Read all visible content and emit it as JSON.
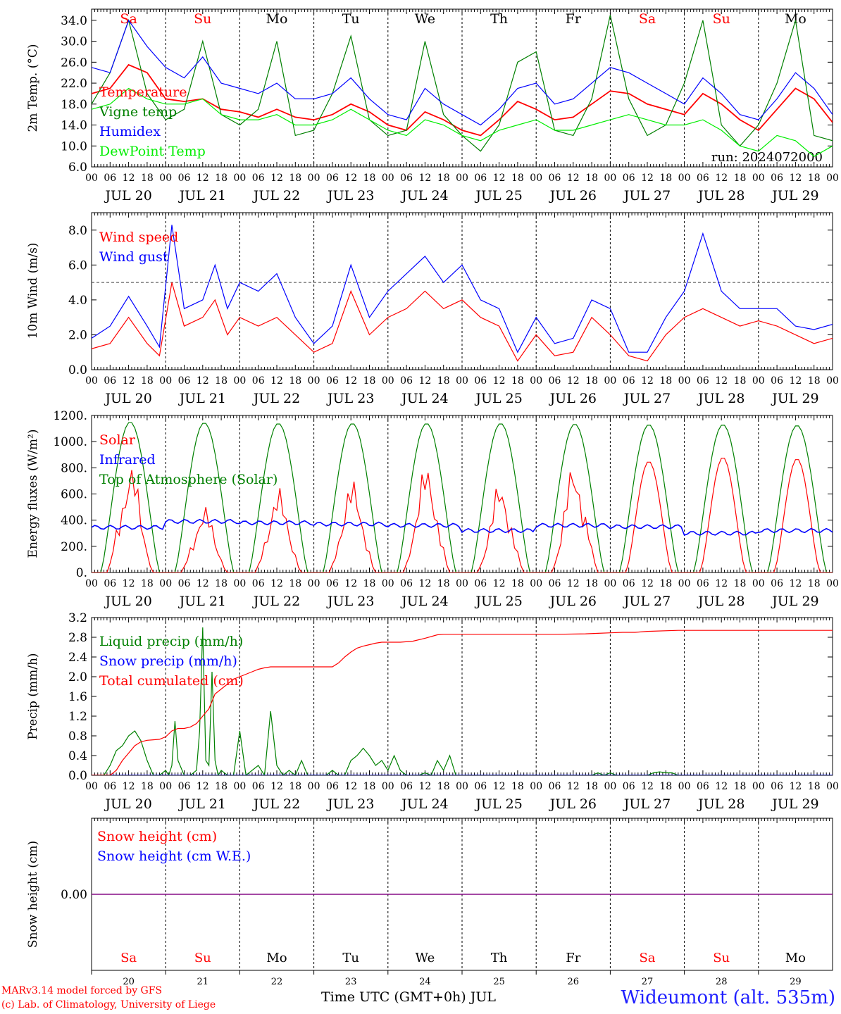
{
  "run_label": "run: 2024072000",
  "days": [
    "JUL 20",
    "JUL 21",
    "JUL 22",
    "JUL 23",
    "JUL 24",
    "JUL 25",
    "JUL 26",
    "JUL 27",
    "JUL 28",
    "JUL 29"
  ],
  "day_numbers": [
    "20",
    "21",
    "22",
    "23",
    "24",
    "25",
    "26",
    "27",
    "28",
    "29"
  ],
  "weekdays": [
    "Sa",
    "Su",
    "Mo",
    "Tu",
    "We",
    "Th",
    "Fr",
    "Sa",
    "Su",
    "Mo"
  ],
  "weekend_flags": [
    true,
    true,
    false,
    false,
    false,
    false,
    false,
    true,
    true,
    false
  ],
  "hour_ticks": [
    "00",
    "06",
    "12",
    "18"
  ],
  "final_hour_tick": "00",
  "colors": {
    "red": "#ff0000",
    "green": "#008000",
    "blue": "#0000ff",
    "lightgreen": "#00ee00",
    "purple": "#800080",
    "grid": "#000000"
  },
  "footer": {
    "model": "MARv3.14 model forced by GFS",
    "copyright": "(c) Lab. of Climatology, University of Liege",
    "xaxis_label": "Time UTC (GMT+0h) JUL",
    "station": "Wideumont (alt. 535m)"
  },
  "chart_data": [
    {
      "type": "line",
      "ylabel": "2m Temp. (°C)",
      "ylim": [
        6,
        36
      ],
      "yticks": [
        "6.0",
        "10.0",
        "14.0",
        "18.0",
        "22.0",
        "26.0",
        "30.0",
        "34.0"
      ],
      "ytick_values": [
        6,
        10,
        14,
        18,
        22,
        26,
        30,
        34
      ],
      "x_unit": "hours since JUL 20 00 UTC",
      "series": [
        {
          "name": "Temperature",
          "color": "#ff0000",
          "x": [
            0,
            6,
            12,
            18,
            24,
            30,
            36,
            42,
            48,
            54,
            60,
            66,
            72,
            78,
            84,
            90,
            96,
            102,
            108,
            114,
            120,
            126,
            132,
            138,
            144,
            150,
            156,
            162,
            168,
            174,
            180,
            186,
            192,
            198,
            204,
            210,
            216,
            222,
            228,
            234,
            240
          ],
          "values": [
            20,
            21,
            25.5,
            24,
            19,
            18.5,
            19,
            17,
            16.5,
            15.5,
            17,
            15.5,
            15,
            16,
            18,
            16.5,
            14,
            13,
            16.5,
            15,
            13,
            12,
            15,
            18.5,
            17,
            15,
            15.5,
            18,
            20.5,
            20,
            18,
            17,
            16,
            20,
            18,
            15,
            13,
            17,
            21,
            19,
            14.5
          ]
        },
        {
          "name": "Vigne temp",
          "color": "#008000",
          "x": [
            0,
            6,
            12,
            18,
            24,
            30,
            36,
            42,
            48,
            54,
            60,
            66,
            72,
            78,
            84,
            90,
            96,
            102,
            108,
            114,
            120,
            126,
            132,
            138,
            144,
            150,
            156,
            162,
            168,
            174,
            180,
            186,
            192,
            198,
            204,
            210,
            216,
            222,
            228,
            234,
            240
          ],
          "values": [
            18,
            24,
            34,
            20,
            15,
            17,
            30,
            16,
            14,
            17,
            30,
            12,
            13,
            20,
            31,
            15,
            12,
            13,
            30,
            16,
            12,
            9,
            14,
            26,
            28,
            13,
            12,
            19,
            35,
            19,
            12,
            14,
            22,
            34,
            14,
            10,
            14,
            22,
            34,
            12,
            11
          ]
        },
        {
          "name": "Humidex",
          "color": "#0000ff",
          "x": [
            0,
            6,
            12,
            18,
            24,
            30,
            36,
            42,
            48,
            54,
            60,
            66,
            72,
            78,
            84,
            90,
            96,
            102,
            108,
            114,
            120,
            126,
            132,
            138,
            144,
            150,
            156,
            162,
            168,
            174,
            180,
            186,
            192,
            198,
            204,
            210,
            216,
            222,
            228,
            234,
            240
          ],
          "values": [
            25,
            24,
            34,
            29,
            25,
            23,
            27,
            22,
            21,
            20,
            22,
            19,
            19,
            20,
            23,
            19,
            16,
            15,
            21,
            18,
            16,
            14,
            17,
            21,
            22,
            18,
            19,
            22,
            25,
            24,
            22,
            20,
            18,
            23,
            20,
            16,
            15,
            19,
            24,
            21,
            16
          ]
        },
        {
          "name": "DewPoint Temp",
          "color": "#00ee00",
          "x": [
            0,
            6,
            12,
            18,
            24,
            30,
            36,
            42,
            48,
            54,
            60,
            66,
            72,
            78,
            84,
            90,
            96,
            102,
            108,
            114,
            120,
            126,
            132,
            138,
            144,
            150,
            156,
            162,
            168,
            174,
            180,
            186,
            192,
            198,
            204,
            210,
            216,
            222,
            228,
            234,
            240
          ],
          "values": [
            17,
            18,
            21,
            19,
            18,
            18,
            19,
            16,
            15,
            15,
            16,
            14,
            14,
            15,
            17,
            15,
            13,
            12,
            15,
            14,
            12,
            11,
            13,
            14,
            15,
            13,
            13,
            14,
            15,
            16,
            15,
            14,
            14,
            15,
            13,
            10,
            9,
            12,
            11,
            8,
            10
          ]
        }
      ]
    },
    {
      "type": "line",
      "ylabel": "10m Wind (m/s)",
      "ylim": [
        0,
        9
      ],
      "yticks": [
        "0.0",
        "2.0",
        "4.0",
        "6.0",
        "8.0"
      ],
      "ytick_values": [
        0,
        2,
        4,
        6,
        8
      ],
      "reference_line": 5,
      "x_unit": "hours since JUL 20 00 UTC",
      "series": [
        {
          "name": "Wind speed",
          "color": "#ff0000",
          "x": [
            0,
            6,
            12,
            18,
            22,
            26,
            30,
            36,
            40,
            44,
            48,
            54,
            60,
            66,
            72,
            78,
            84,
            90,
            96,
            102,
            108,
            114,
            120,
            126,
            132,
            138,
            144,
            150,
            156,
            162,
            168,
            174,
            180,
            186,
            192,
            198,
            204,
            210,
            216,
            222,
            228,
            234,
            240
          ],
          "values": [
            1.2,
            1.5,
            3,
            1.5,
            0.8,
            5,
            2.5,
            3,
            4,
            2,
            3,
            2.5,
            3,
            2,
            1,
            1.5,
            4.5,
            2,
            3,
            3.5,
            4.5,
            3.5,
            4,
            3,
            2.5,
            0.5,
            2,
            0.8,
            1,
            3,
            2,
            0.8,
            0.5,
            2,
            3,
            3.5,
            3,
            2.5,
            2.8,
            2.5,
            2,
            1.5,
            1.8
          ]
        },
        {
          "name": "Wind gust",
          "color": "#0000ff",
          "x": [
            0,
            6,
            12,
            18,
            22,
            26,
            30,
            36,
            40,
            44,
            48,
            54,
            60,
            66,
            72,
            78,
            84,
            90,
            96,
            102,
            108,
            114,
            120,
            126,
            132,
            138,
            144,
            150,
            156,
            162,
            168,
            174,
            180,
            186,
            192,
            198,
            204,
            210,
            216,
            222,
            228,
            234,
            240
          ],
          "values": [
            1.8,
            2.5,
            4.2,
            2.5,
            1.3,
            8.3,
            3.5,
            4,
            6,
            3.5,
            5,
            4.5,
            5.5,
            3,
            1.5,
            2.5,
            6,
            3,
            4.5,
            5.5,
            6.5,
            5,
            6,
            4,
            3.5,
            1,
            3,
            1.5,
            1.8,
            4,
            3.5,
            1,
            1,
            3,
            4.5,
            7.8,
            4.5,
            3.5,
            3.5,
            3.5,
            2.5,
            2.3,
            2.6
          ]
        }
      ]
    },
    {
      "type": "line",
      "ylabel": "Energy fluxes (W/m²)",
      "ylim": [
        0,
        1200
      ],
      "yticks": [
        "0.",
        "200.",
        "400.",
        "600.",
        "800.",
        "1000.",
        "1200."
      ],
      "ytick_values": [
        0,
        200,
        400,
        600,
        800,
        1000,
        1200
      ],
      "x_unit": "hours since JUL 20 00 UTC",
      "day_peaks": {
        "toa": [
          1150,
          1145,
          1140,
          1140,
          1140,
          1140,
          1135,
          1130,
          1130,
          1125
        ],
        "solar": [
          840,
          510,
          650,
          720,
          840,
          700,
          850,
          850,
          880,
          870
        ]
      },
      "infrared_level": [
        345,
        390,
        380,
        370,
        360,
        320,
        360,
        350,
        300,
        320
      ],
      "series": [
        {
          "name": "Solar",
          "color": "#ff0000"
        },
        {
          "name": "Infrared",
          "color": "#0000ff"
        },
        {
          "name": "Top of Atmosphere (Solar)",
          "color": "#008000"
        }
      ]
    },
    {
      "type": "line",
      "ylabel": "Precip (mm/h)",
      "ylim": [
        0,
        3.2
      ],
      "yticks": [
        "0.0",
        "0.4",
        "0.8",
        "1.2",
        "1.6",
        "2.0",
        "2.4",
        "2.8",
        "3.2"
      ],
      "ytick_values": [
        0,
        0.4,
        0.8,
        1.2,
        1.6,
        2.0,
        2.4,
        2.8,
        3.2
      ],
      "x_unit": "hours since JUL 20 00 UTC",
      "series": [
        {
          "name": "Liquid precip (mm/h)",
          "color": "#008000",
          "x": [
            0,
            4,
            6,
            8,
            10,
            12,
            14,
            16,
            18,
            20,
            22,
            24,
            25,
            26,
            27,
            28,
            30,
            32,
            34,
            35,
            36,
            37,
            38,
            39,
            40,
            41,
            42,
            44,
            46,
            48,
            50,
            52,
            54,
            56,
            58,
            60,
            62,
            64,
            66,
            68,
            70,
            72,
            74,
            76,
            78,
            80,
            82,
            84,
            86,
            88,
            90,
            92,
            94,
            96,
            98,
            100,
            102,
            104,
            106,
            108,
            110,
            112,
            114,
            116,
            118,
            120,
            160,
            162,
            164,
            166,
            168,
            170,
            172,
            174,
            176,
            178,
            180,
            182,
            184,
            186,
            188,
            190,
            192,
            194,
            240
          ],
          "values": [
            0,
            0,
            0.2,
            0.5,
            0.6,
            0.8,
            0.9,
            0.7,
            0.3,
            0,
            0,
            0.1,
            0,
            0.2,
            1.1,
            0.3,
            0,
            0,
            0.1,
            0.9,
            3.0,
            0.3,
            0.2,
            2.1,
            0.3,
            0,
            0.1,
            0,
            0,
            0.9,
            0,
            0.1,
            0.2,
            0,
            1.3,
            0.2,
            0,
            0.1,
            0,
            0.3,
            0,
            0,
            0,
            0,
            0.1,
            0,
            0,
            0.3,
            0.4,
            0.55,
            0.4,
            0.2,
            0.3,
            0.1,
            0.4,
            0.1,
            0,
            0,
            0,
            0.05,
            0,
            0.3,
            0.1,
            0.4,
            0,
            0,
            0,
            0,
            0.05,
            0,
            0.05,
            0,
            0,
            0,
            0,
            0,
            0,
            0.05,
            0.07,
            0.05,
            0.05,
            0,
            0,
            0,
            0
          ]
        },
        {
          "name": "Snow precip (mm/h)",
          "color": "#0000ff",
          "x": [
            0,
            240
          ],
          "values": [
            0,
            0
          ]
        },
        {
          "name": "Total cumulated (cm)",
          "color": "#ff0000",
          "x": [
            0,
            6,
            8,
            10,
            12,
            14,
            16,
            18,
            20,
            22,
            24,
            26,
            28,
            30,
            32,
            34,
            36,
            38,
            40,
            42,
            44,
            46,
            48,
            50,
            52,
            54,
            56,
            58,
            60,
            62,
            64,
            66,
            68,
            70,
            72,
            78,
            80,
            82,
            84,
            86,
            88,
            90,
            92,
            94,
            96,
            100,
            104,
            108,
            112,
            114,
            118,
            120,
            130,
            150,
            160,
            164,
            168,
            172,
            176,
            180,
            190,
            200,
            210,
            220,
            230,
            240
          ],
          "values": [
            0,
            0,
            0.1,
            0.3,
            0.45,
            0.6,
            0.68,
            0.71,
            0.72,
            0.73,
            0.78,
            0.9,
            0.95,
            0.95,
            0.98,
            1.05,
            1.2,
            1.35,
            1.65,
            1.75,
            1.85,
            1.95,
            2.0,
            2.05,
            2.1,
            2.15,
            2.18,
            2.2,
            2.2,
            2.2,
            2.2,
            2.2,
            2.2,
            2.2,
            2.2,
            2.2,
            2.28,
            2.4,
            2.5,
            2.58,
            2.62,
            2.65,
            2.68,
            2.7,
            2.7,
            2.7,
            2.72,
            2.78,
            2.85,
            2.86,
            2.86,
            2.86,
            2.86,
            2.86,
            2.87,
            2.88,
            2.89,
            2.9,
            2.9,
            2.92,
            2.94,
            2.94,
            2.94,
            2.94,
            2.94,
            2.94
          ]
        }
      ]
    },
    {
      "type": "line",
      "ylabel": "Snow height (cm)",
      "yticks": [
        "0.00"
      ],
      "ytick_values": [
        0
      ],
      "ylim": [
        -1,
        1
      ],
      "x_unit": "hours since JUL 20 00 UTC",
      "series": [
        {
          "name": "Snow height (cm)",
          "color": "#ff0000",
          "x": [
            0,
            240
          ],
          "values": [
            0,
            0
          ]
        },
        {
          "name": "Snow height (cm W.E.)",
          "color": "#0000ff",
          "x": [
            0,
            240
          ],
          "values": [
            0,
            0
          ]
        }
      ]
    }
  ]
}
